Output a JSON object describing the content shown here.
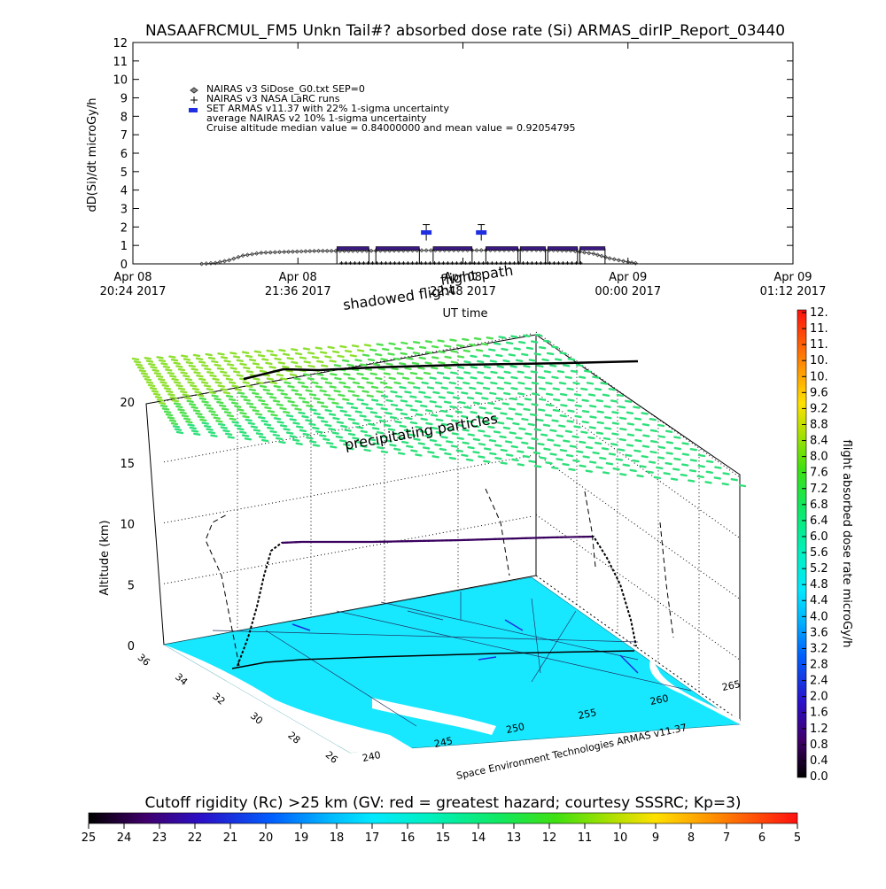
{
  "title": "NASAAFRCMUL_FM5 Unkn Tail#? absorbed dose rate (Si) ARMAS_dirIP_Report_03440",
  "chart_data": [
    {
      "type": "line",
      "ylabel": "dD(Si)/dt microGy/h",
      "xlabel": "UT time",
      "ylim": [
        0,
        12
      ],
      "yticks": [
        "0",
        "1",
        "2",
        "3",
        "4",
        "5",
        "6",
        "7",
        "8",
        "9",
        "10",
        "11",
        "12"
      ],
      "xticks": [
        {
          "date": "Apr 08",
          "time": "20:24 2017"
        },
        {
          "date": "Apr 08",
          "time": "21:36 2017"
        },
        {
          "date": "Apr 08",
          "time": "22:48 2017"
        },
        {
          "date": "Apr 09",
          "time": "00:00 2017"
        },
        {
          "date": "Apr 09",
          "time": "01:12 2017"
        }
      ],
      "legend": [
        "NAIRAS v3 SiDose_G0.txt SEP=0",
        "NAIRAS v3 NASA LaRC runs",
        "SET ARMAS v11.37 with 22% 1-sigma uncertainty",
        "average NAIRAS v2 10% 1-sigma uncertainty",
        "Cruise altitude median value = 0.84000000 and mean value = 0.92054795"
      ],
      "series": [
        {
          "name": "NAIRAS v3 SiDose_G0.txt SEP=0",
          "x": [
            "2017-04-08 20:54",
            "2017-04-08 21:00",
            "2017-04-08 21:06",
            "2017-04-08 21:12",
            "2017-04-08 21:20",
            "2017-04-08 21:30",
            "2017-04-08 21:45",
            "2017-04-08 22:00",
            "2017-04-08 22:20",
            "2017-04-08 22:40",
            "2017-04-08 23:00",
            "2017-04-08 23:20",
            "2017-04-08 23:35",
            "2017-04-08 23:45",
            "2017-04-08 23:52",
            "2017-04-09 00:00",
            "2017-04-09 00:05"
          ],
          "y": [
            0,
            0.05,
            0.2,
            0.45,
            0.6,
            0.65,
            0.7,
            0.7,
            0.72,
            0.74,
            0.74,
            0.75,
            0.72,
            0.55,
            0.3,
            0.1,
            0
          ]
        },
        {
          "name": "NAIRAS v3 NASA LaRC runs",
          "x": [
            "2017-04-08 21:55",
            "2017-04-08 22:10",
            "2017-04-08 22:25",
            "2017-04-08 22:40",
            "2017-04-08 22:55",
            "2017-04-08 23:10",
            "2017-04-08 23:25",
            "2017-04-08 23:40"
          ],
          "y": [
            0.05,
            0.05,
            0.05,
            0.05,
            0.05,
            0.05,
            0.05,
            0.05
          ]
        },
        {
          "name": "SET ARMAS v11.37 with 22% 1-sigma uncertainty",
          "x": [
            "2017-04-08 22:07",
            "2017-04-08 22:30",
            "2017-04-08 22:34",
            "2017-04-08 22:52",
            "2017-04-08 22:57",
            "2017-04-08 23:17",
            "2017-04-08 23:28",
            "2017-04-08 23:42"
          ],
          "y": [
            0.84,
            0.84,
            1.7,
            0.84,
            1.7,
            0.84,
            0.84,
            0.84
          ]
        }
      ]
    },
    {
      "type": "scatter",
      "title_top": "flight path",
      "title_shadow": "shadowed flight",
      "annotation": "precipitating particles",
      "zlabel": "Altitude (km)",
      "zticks": [
        "0",
        "5",
        "10",
        "15",
        "20"
      ],
      "lat_ticks": [
        "36",
        "34",
        "32",
        "30",
        "28",
        "26"
      ],
      "lon_ticks": [
        "240",
        "245",
        "250",
        "255",
        "260",
        "265"
      ],
      "credit": "Space Environment Technologies ARMAS v11.37",
      "path": {
        "alt_km": [
          0,
          3,
          7,
          8.5,
          8.6,
          8.7,
          8.8,
          8.9,
          8.9,
          5,
          1,
          0
        ],
        "dose": [
          0.1,
          0.3,
          0.8,
          0.84,
          0.84,
          0.84,
          0.84,
          0.84,
          0.84,
          0.5,
          0.2,
          0.1
        ]
      }
    }
  ],
  "colorbar_right": {
    "label": "flight absorbed dose rate microGy/h",
    "ticks": [
      "0.0",
      "0.4",
      "0.8",
      "1.2",
      "1.6",
      "2.0",
      "2.4",
      "2.8",
      "3.2",
      "3.6",
      "4.0",
      "4.4",
      "4.8",
      "5.2",
      "5.6",
      "6.0",
      "6.4",
      "6.8",
      "7.2",
      "7.6",
      "8.0",
      "8.4",
      "8.8",
      "9.2",
      "9.6",
      "10.",
      "10.",
      "11.",
      "11.",
      "12."
    ]
  },
  "colorbar_bottom": {
    "label": "Cutoff rigidity (Rc) >25 km (GV: red = greatest hazard; courtesy SSSRC; Kp=3)",
    "ticks": [
      "25",
      "24",
      "23",
      "22",
      "21",
      "20",
      "19",
      "18",
      "17",
      "16",
      "15",
      "14",
      "13",
      "12",
      "11",
      "10",
      "9",
      "8",
      "7",
      "6",
      "5"
    ]
  },
  "colors": {
    "map_fill": "#18e8ff",
    "precip": "#66e040",
    "armas_marker": "#1f2ee0",
    "path": "#000000"
  }
}
